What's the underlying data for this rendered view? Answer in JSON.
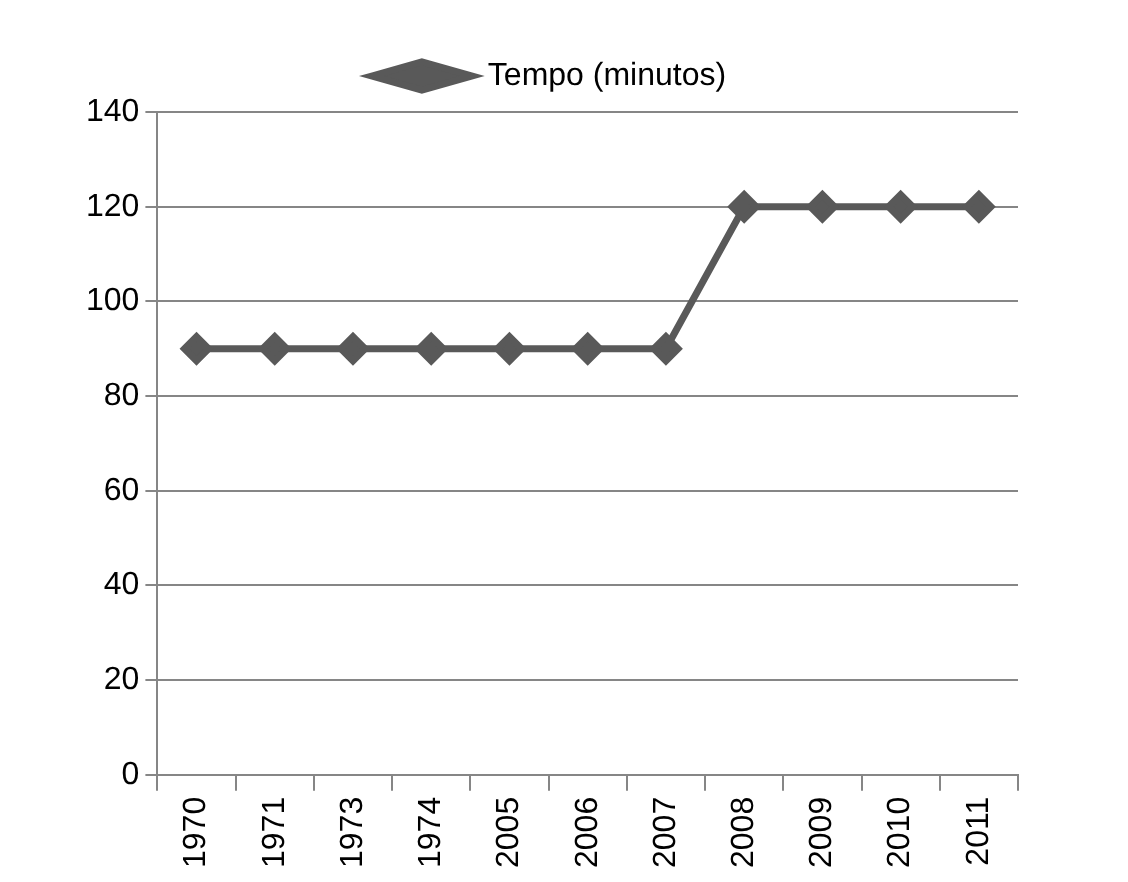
{
  "chart_data": {
    "type": "line",
    "categories": [
      "1970",
      "1971",
      "1973",
      "1974",
      "2005",
      "2006",
      "2007",
      "2008",
      "2009",
      "2010",
      "2011"
    ],
    "series": [
      {
        "name": "Tempo (minutos)",
        "color": "#595959",
        "values": [
          90,
          90,
          90,
          90,
          90,
          90,
          90,
          120,
          120,
          120,
          120
        ]
      }
    ],
    "ylim": [
      0,
      140
    ],
    "yticks": [
      0,
      20,
      40,
      60,
      80,
      100,
      120,
      140
    ],
    "grid": "y",
    "legend": "top",
    "marker": "diamond",
    "line_style": "solid"
  }
}
